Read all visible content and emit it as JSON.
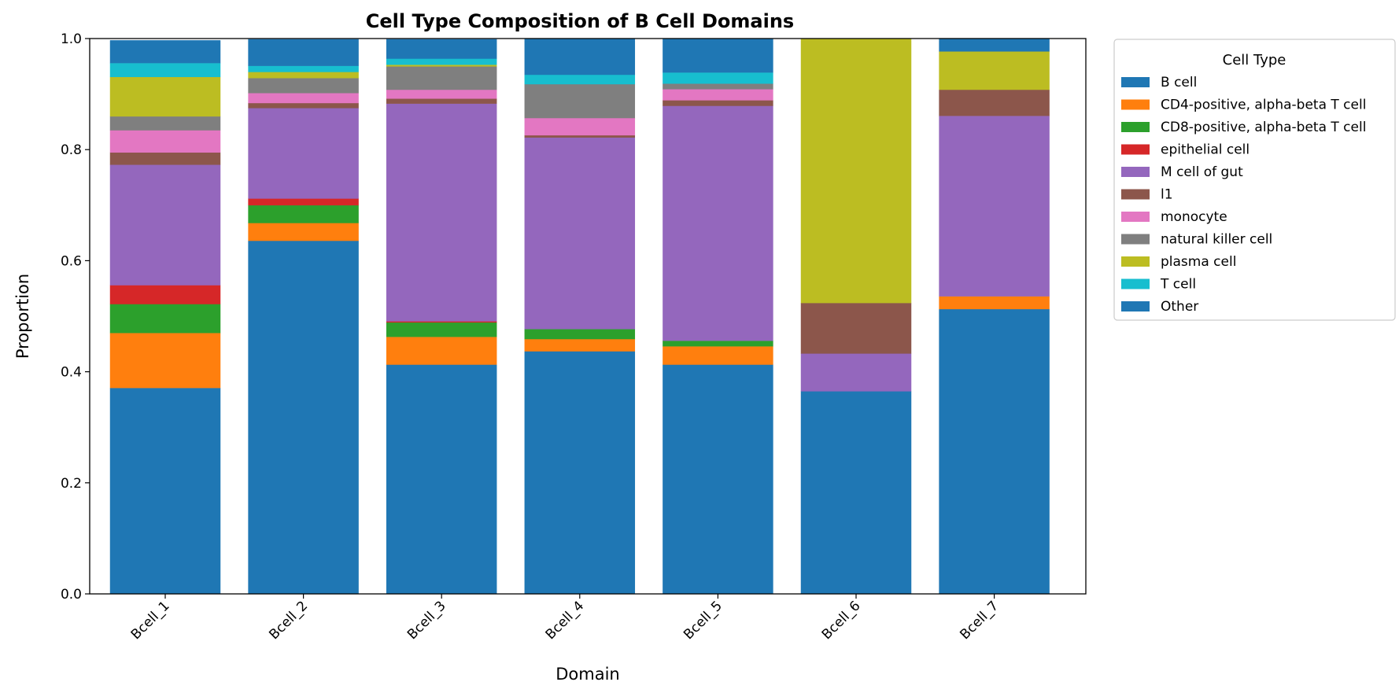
{
  "chart_data": {
    "type": "bar",
    "stacked": true,
    "title": "Cell Type Composition of B Cell Domains",
    "xlabel": "Domain",
    "ylabel": "Proportion",
    "ylim": [
      0,
      1.0
    ],
    "yticks": [
      "0.0",
      "0.2",
      "0.4",
      "0.6",
      "0.8",
      "1.0"
    ],
    "categories": [
      "Bcell_1",
      "Bcell_2",
      "Bcell_3",
      "Bcell_4",
      "Bcell_5",
      "Bcell_6",
      "Bcell_7"
    ],
    "legend": {
      "title": "Cell Type",
      "placement": "outside-top-right"
    },
    "series": [
      {
        "name": "B cell",
        "color": "#1f77b4",
        "values": [
          0.371,
          0.636,
          0.413,
          0.437,
          0.413,
          0.365,
          0.513
        ]
      },
      {
        "name": "CD4-positive, alpha-beta T cell",
        "color": "#ff7f0e",
        "values": [
          0.099,
          0.032,
          0.05,
          0.022,
          0.033,
          0.0,
          0.023
        ]
      },
      {
        "name": "CD8-positive, alpha-beta T cell",
        "color": "#2ca02c",
        "values": [
          0.052,
          0.032,
          0.026,
          0.018,
          0.01,
          0.0,
          0.0
        ]
      },
      {
        "name": "epithelial cell",
        "color": "#d62728",
        "values": [
          0.034,
          0.012,
          0.002,
          0.0,
          0.0,
          0.0,
          0.0
        ]
      },
      {
        "name": "M cell of gut",
        "color": "#9467bd",
        "values": [
          0.217,
          0.163,
          0.392,
          0.345,
          0.423,
          0.068,
          0.325
        ]
      },
      {
        "name": "l1",
        "color": "#8c564b",
        "values": [
          0.022,
          0.009,
          0.009,
          0.004,
          0.01,
          0.091,
          0.047
        ]
      },
      {
        "name": "monocyte",
        "color": "#e377c2",
        "values": [
          0.04,
          0.018,
          0.016,
          0.031,
          0.02,
          0.0,
          0.0
        ]
      },
      {
        "name": "natural killer cell",
        "color": "#7f7f7f",
        "values": [
          0.025,
          0.027,
          0.042,
          0.061,
          0.01,
          0.0,
          0.0
        ]
      },
      {
        "name": "plasma cell",
        "color": "#bcbd22",
        "values": [
          0.071,
          0.011,
          0.003,
          0.0,
          0.0,
          0.476,
          0.069
        ]
      },
      {
        "name": "T cell",
        "color": "#17becf",
        "values": [
          0.025,
          0.011,
          0.011,
          0.017,
          0.02,
          0.0,
          0.0
        ]
      },
      {
        "name": "Other",
        "color": "#1f77b4",
        "values": [
          0.041,
          0.048,
          0.035,
          0.065,
          0.061,
          0.0,
          0.023
        ]
      }
    ]
  }
}
